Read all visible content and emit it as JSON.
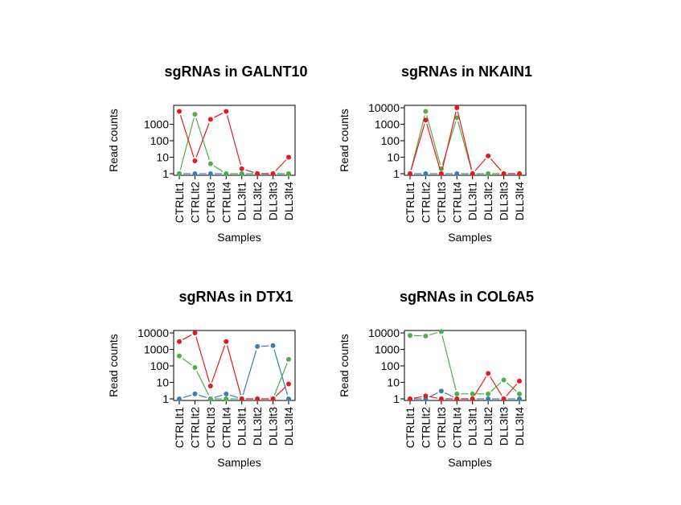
{
  "colors": {
    "series": [
      "#377eb8",
      "#4daf4a",
      "#e41a1c"
    ]
  },
  "chart_data": [
    {
      "type": "line",
      "title": "sgRNAs in GALNT10",
      "xlabel": "Samples",
      "ylabel": "Read counts",
      "yscale": "log",
      "ylim": [
        1,
        10000
      ],
      "yticks": [
        1,
        10,
        100,
        1000
      ],
      "categories": [
        "CTRLlt1",
        "CTRLlt2",
        "CTRLlt3",
        "CTRLlt4",
        "DLL3lt1",
        "DLL3lt2",
        "DLL3lt3",
        "DLL3lt4"
      ],
      "grid": false,
      "series": [
        {
          "color": "#377eb8",
          "values": [
            1,
            1,
            1,
            1,
            1,
            1,
            1,
            1
          ]
        },
        {
          "color": "#4daf4a",
          "values": [
            1,
            4000,
            4,
            1,
            1,
            1,
            1,
            1
          ]
        },
        {
          "color": "#e41a1c",
          "values": [
            6000,
            6,
            2000,
            6000,
            2,
            1,
            1,
            10
          ]
        }
      ]
    },
    {
      "type": "line",
      "title": "sgRNAs in NKAIN1",
      "xlabel": "Samples",
      "ylabel": "Read counts",
      "yscale": "log",
      "ylim": [
        1,
        10000
      ],
      "yticks": [
        1,
        10,
        100,
        1000,
        10000
      ],
      "categories": [
        "CTRLlt1",
        "CTRLlt2",
        "CTRLlt3",
        "CTRLlt4",
        "DLL3lt1",
        "DLL3lt2",
        "DLL3lt3",
        "DLL3lt4"
      ],
      "grid": false,
      "series": [
        {
          "color": "#377eb8",
          "values": [
            1,
            1,
            1,
            1,
            1,
            1,
            1,
            1
          ]
        },
        {
          "color": "#4daf4a",
          "values": [
            1,
            6000,
            2,
            2500,
            1,
            1,
            1,
            1
          ]
        },
        {
          "color": "#e41a1c",
          "values": [
            1,
            1800,
            1,
            10000,
            1,
            12,
            1,
            1
          ]
        }
      ]
    },
    {
      "type": "line",
      "title": "sgRNAs in DTX1",
      "xlabel": "Samples",
      "ylabel": "Read counts",
      "yscale": "log",
      "ylim": [
        1,
        10000
      ],
      "yticks": [
        1,
        10,
        100,
        1000,
        10000
      ],
      "categories": [
        "CTRLlt1",
        "CTRLlt2",
        "CTRLlt3",
        "CTRLlt4",
        "DLL3lt1",
        "DLL3lt2",
        "DLL3lt3",
        "DLL3lt4"
      ],
      "grid": false,
      "series": [
        {
          "color": "#377eb8",
          "values": [
            1,
            2,
            1,
            2,
            1,
            1500,
            1700,
            1
          ]
        },
        {
          "color": "#4daf4a",
          "values": [
            400,
            80,
            1,
            1,
            1,
            1,
            1,
            250
          ]
        },
        {
          "color": "#e41a1c",
          "values": [
            3000,
            10000,
            6,
            3000,
            1,
            1,
            1,
            8
          ]
        }
      ]
    },
    {
      "type": "line",
      "title": "sgRNAs in COL6A5",
      "xlabel": "Samples",
      "ylabel": "Read counts",
      "yscale": "log",
      "ylim": [
        1,
        10000
      ],
      "yticks": [
        1,
        10,
        100,
        1000,
        10000
      ],
      "categories": [
        "CTRLlt1",
        "CTRLlt2",
        "CTRLlt3",
        "CTRLlt4",
        "DLL3lt1",
        "DLL3lt2",
        "DLL3lt3",
        "DLL3lt4"
      ],
      "grid": false,
      "series": [
        {
          "color": "#377eb8",
          "values": [
            1,
            1,
            3,
            1,
            1,
            1,
            1,
            1
          ]
        },
        {
          "color": "#4daf4a",
          "values": [
            7000,
            6500,
            12000,
            2,
            2,
            2,
            14,
            2
          ]
        },
        {
          "color": "#e41a1c",
          "values": [
            1,
            1.5,
            1,
            1,
            1,
            35,
            1,
            12
          ]
        }
      ]
    }
  ]
}
